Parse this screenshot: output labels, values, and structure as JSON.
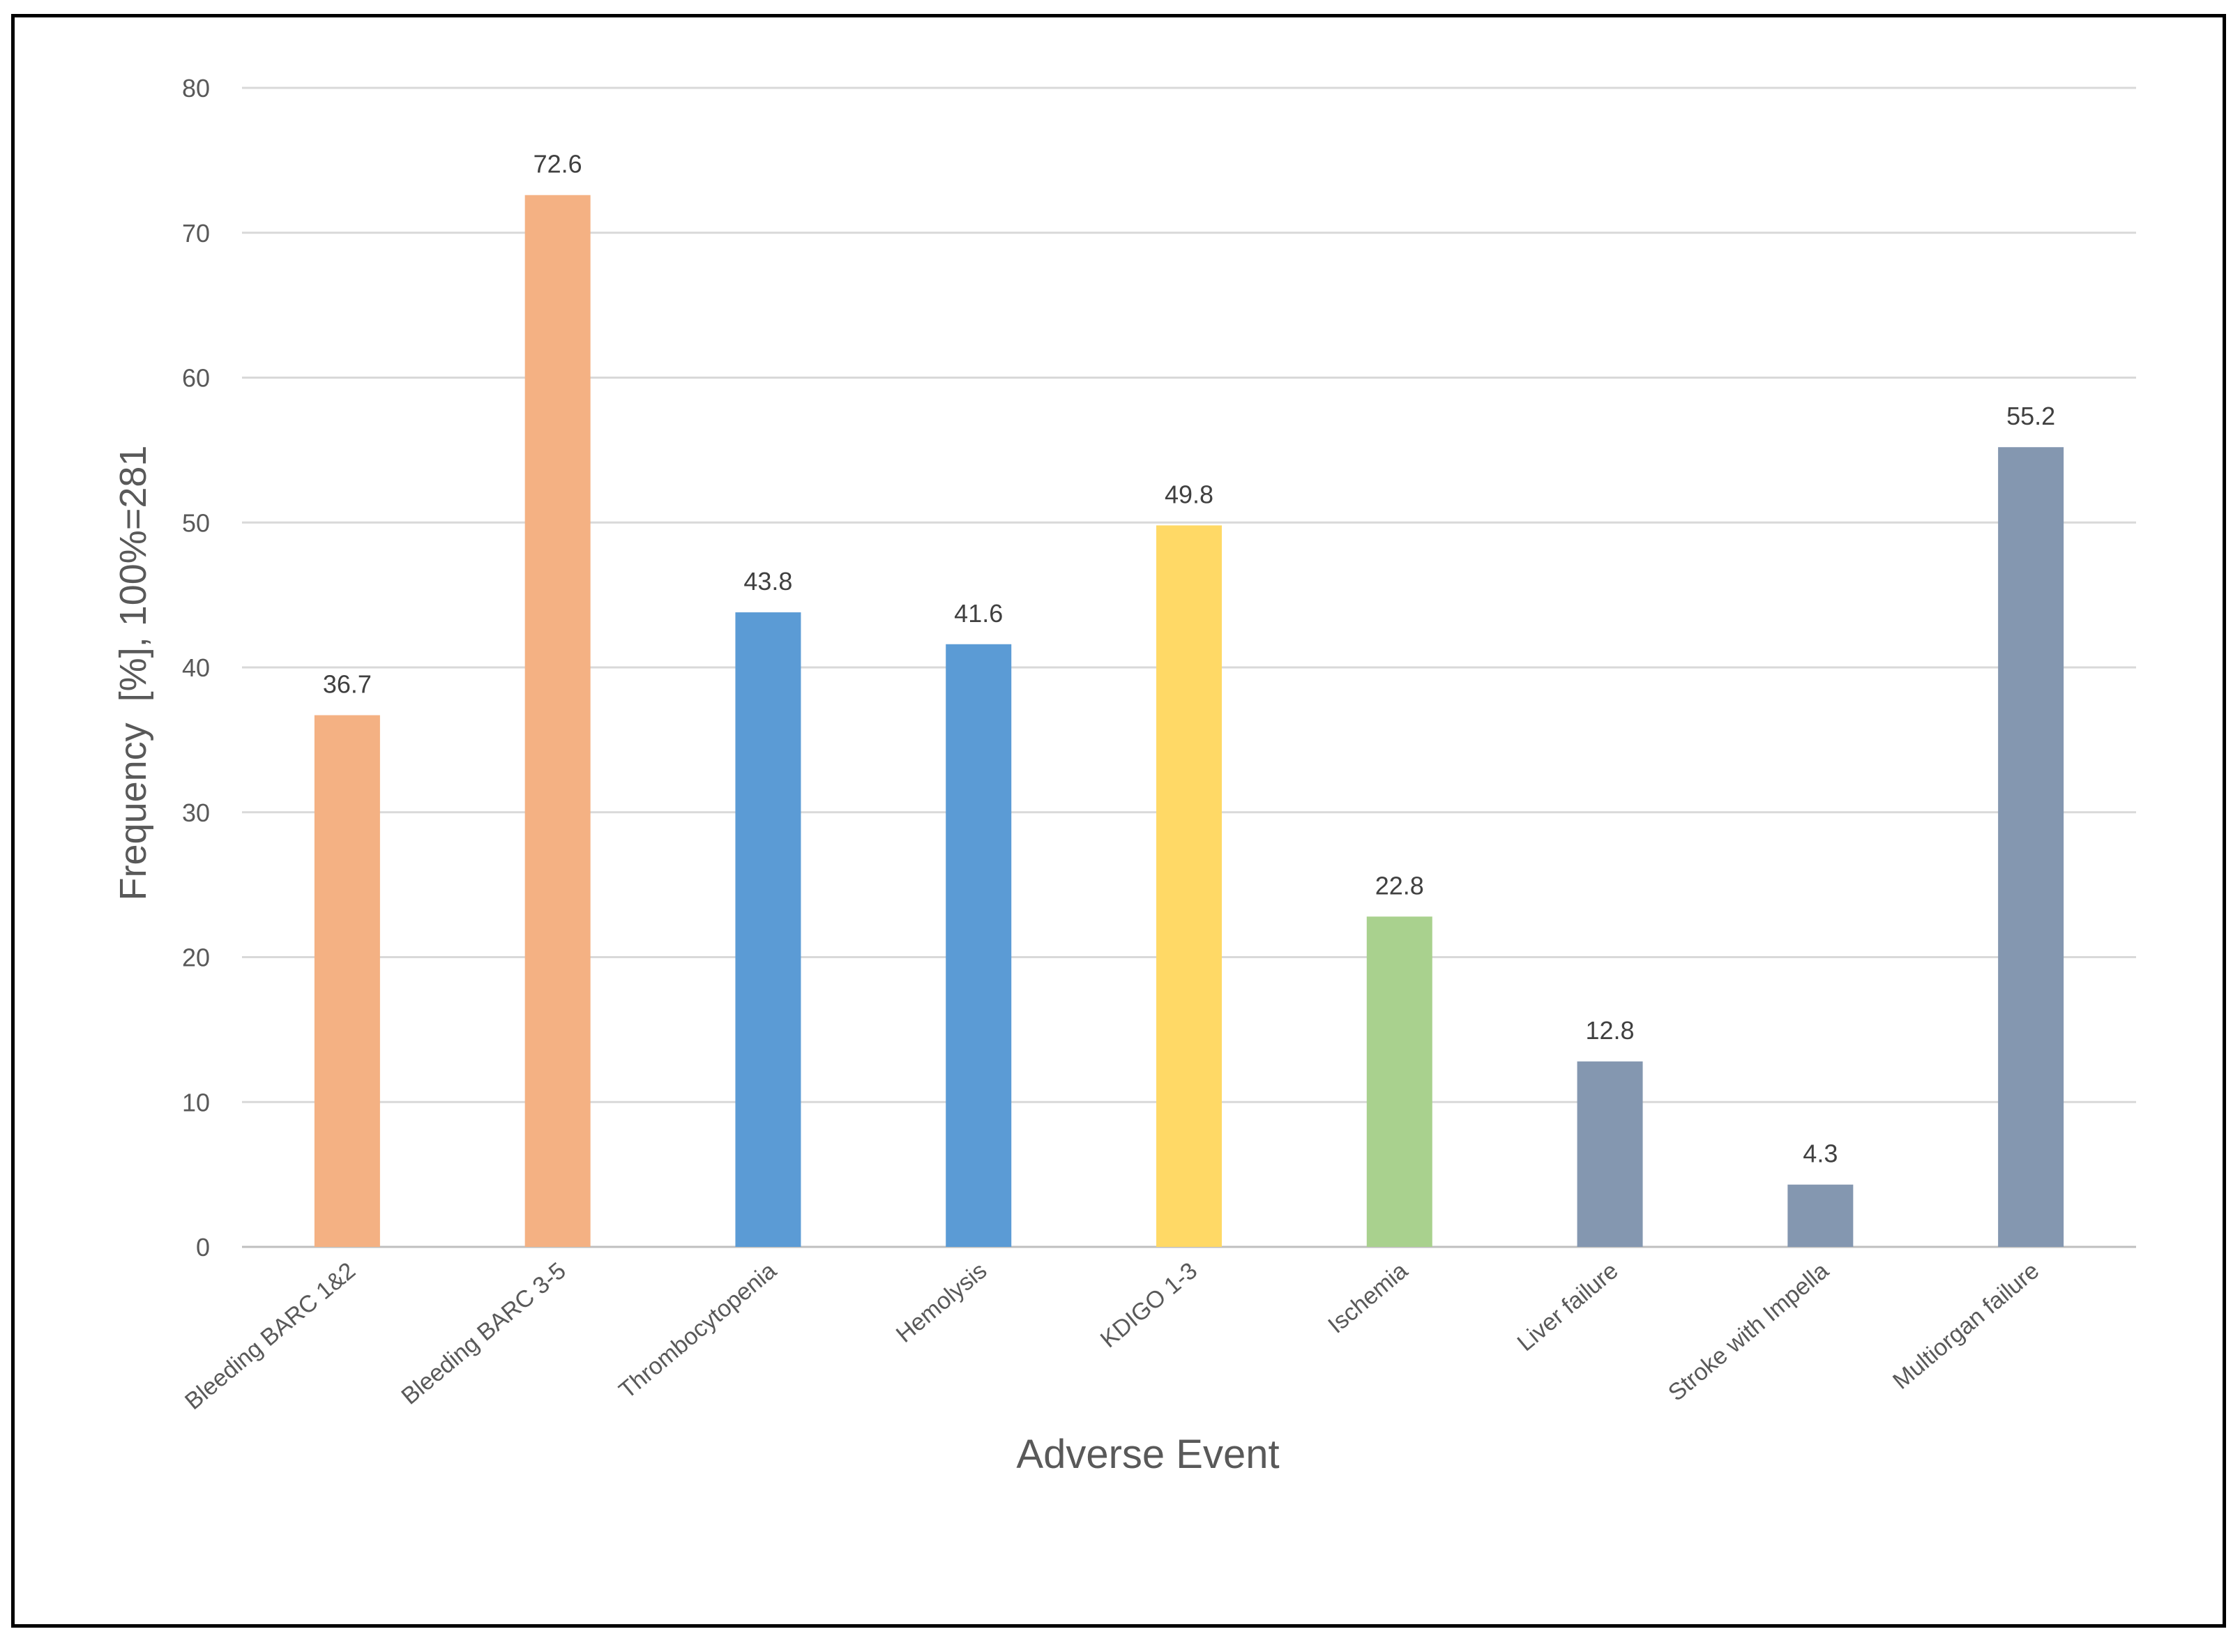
{
  "chart_data": {
    "type": "bar",
    "categories": [
      "Bleeding BARC 1&2",
      "Bleeding BARC 3-5",
      "Thrombocytopenia",
      "Hemolysis",
      "KDIGO 1-3",
      "Ischemia",
      "Liver failure",
      "Stroke with Impella",
      "Multiorgan failure"
    ],
    "values": [
      36.7,
      72.6,
      43.8,
      41.6,
      49.8,
      22.8,
      12.8,
      4.3,
      55.2
    ],
    "data_labels": [
      "36.7",
      "72.6",
      "43.8",
      "41.6",
      "49.8",
      "22.8",
      "12.8",
      "4.3",
      "55.2"
    ],
    "colors": [
      "#F4B183",
      "#F4B183",
      "#5B9BD5",
      "#5B9BD5",
      "#FFD966",
      "#A9D18E",
      "#8497B0",
      "#8497B0",
      "#8497B0"
    ],
    "xlabel": "Adverse Event",
    "ylabel": "Frequency  [%], 100%=281",
    "ylim": [
      0,
      80
    ],
    "yticks": [
      0,
      10,
      20,
      30,
      40,
      50,
      60,
      70,
      80
    ],
    "grid": true,
    "legend": "none"
  }
}
